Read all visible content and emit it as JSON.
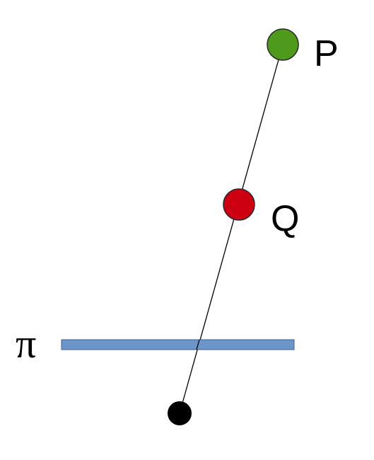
{
  "diagram": {
    "labels": {
      "p": "P",
      "q": "Q",
      "plane": "π"
    },
    "colors": {
      "background": "#ffffff",
      "line": "#000000",
      "point_p_fill": "#4e9a1d",
      "point_q_fill": "#cc0011",
      "point_outline": "#2b2b2b",
      "origin_point": "#000000",
      "plane_fill": "#6c95c9",
      "plane_outline": "#3a5f99"
    }
  }
}
